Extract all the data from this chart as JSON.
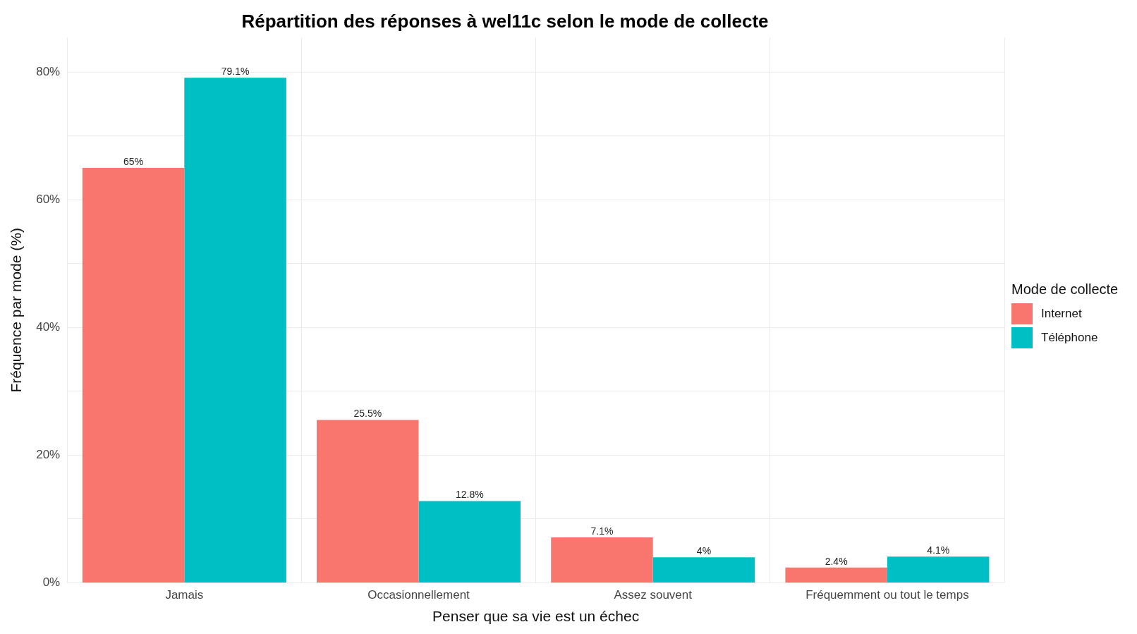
{
  "chart_data": {
    "type": "bar",
    "title": "Répartition des réponses à wel11c selon le mode de collecte",
    "xlabel": "Penser que sa vie est un échec",
    "ylabel": "Fréquence par mode (%)",
    "legend_title": "Mode de collecte",
    "categories": [
      "Jamais",
      "Occasionnellement",
      "Assez souvent",
      "Fréquemment ou tout le temps"
    ],
    "series": [
      {
        "name": "Internet",
        "color": "#f8766d",
        "values": [
          65,
          25.5,
          7.1,
          2.4
        ],
        "value_labels": [
          "65%",
          "25.5%",
          "7.1%",
          "2.4%"
        ]
      },
      {
        "name": "Téléphone",
        "color": "#00bfc4",
        "values": [
          79.1,
          12.8,
          4,
          4.1
        ],
        "value_labels": [
          "79.1%",
          "12.8%",
          "4%",
          "4.1%"
        ]
      }
    ],
    "ylim": [
      0,
      85.4
    ],
    "yticks": [
      {
        "value": 0,
        "label": "0%"
      },
      {
        "value": 10,
        "label": null
      },
      {
        "value": 20,
        "label": "20%"
      },
      {
        "value": 30,
        "label": null
      },
      {
        "value": 40,
        "label": "40%"
      },
      {
        "value": 50,
        "label": null
      },
      {
        "value": 60,
        "label": "60%"
      },
      {
        "value": 70,
        "label": null
      },
      {
        "value": 80,
        "label": "80%"
      }
    ],
    "grid": true,
    "legend": "right"
  }
}
